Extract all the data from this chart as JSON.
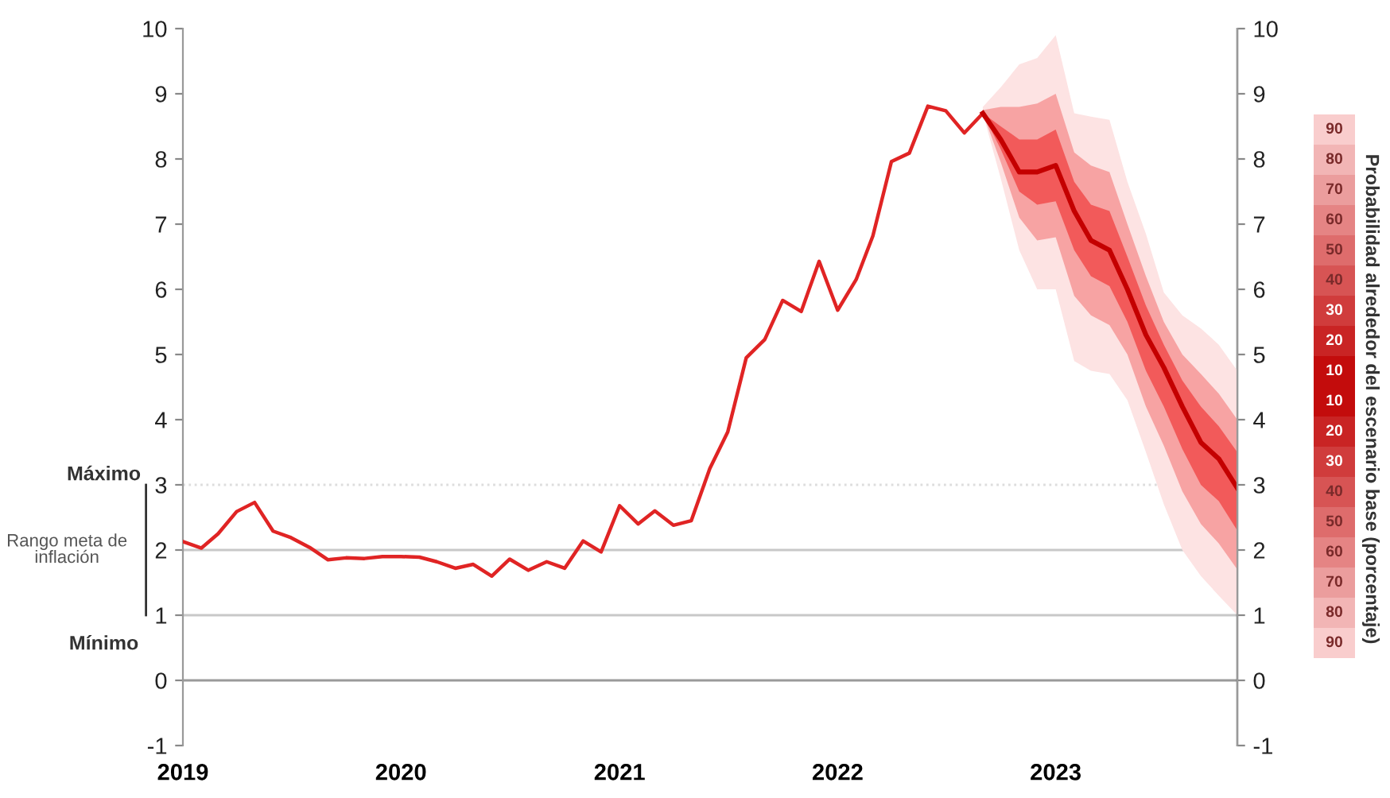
{
  "chart_data": {
    "type": "line",
    "x": [
      "2019-01",
      "2019-02",
      "2019-03",
      "2019-04",
      "2019-05",
      "2019-06",
      "2019-07",
      "2019-08",
      "2019-09",
      "2019-10",
      "2019-11",
      "2019-12",
      "2020-01",
      "2020-02",
      "2020-03",
      "2020-04",
      "2020-05",
      "2020-06",
      "2020-07",
      "2020-08",
      "2020-09",
      "2020-10",
      "2020-11",
      "2020-12",
      "2021-01",
      "2021-02",
      "2021-03",
      "2021-04",
      "2021-05",
      "2021-06",
      "2021-07",
      "2021-08",
      "2021-09",
      "2021-10",
      "2021-11",
      "2021-12",
      "2022-01",
      "2022-02",
      "2022-03",
      "2022-04",
      "2022-05",
      "2022-06",
      "2022-07",
      "2022-08",
      "2022-09"
    ],
    "series": [
      {
        "color": "#e02424",
        "values": [
          2.13,
          2.03,
          2.25,
          2.59,
          2.73,
          2.29,
          2.19,
          2.04,
          1.85,
          1.88,
          1.87,
          1.9,
          1.9,
          1.89,
          1.82,
          1.72,
          1.78,
          1.6,
          1.86,
          1.69,
          1.82,
          1.72,
          2.14,
          1.97,
          2.68,
          2.4,
          2.6,
          2.38,
          2.45,
          3.25,
          3.81,
          4.95,
          5.23,
          5.83,
          5.66,
          6.43,
          5.68,
          6.15,
          6.82,
          7.96,
          8.09,
          8.81,
          8.74,
          8.4,
          8.7
        ]
      },
      {
        "color": "#c40000",
        "x": [
          "2022-09",
          "2022-10",
          "2022-11",
          "2022-12",
          "2023-01",
          "2023-02",
          "2023-03",
          "2023-04",
          "2023-05",
          "2023-06",
          "2023-07",
          "2023-08",
          "2023-09",
          "2023-10",
          "2023-11"
        ],
        "values": [
          8.7,
          8.3,
          7.8,
          7.8,
          7.9,
          7.2,
          6.75,
          6.6,
          6.0,
          5.3,
          4.8,
          4.2,
          3.65,
          3.4,
          2.95
        ],
        "lower": [
          8.7,
          7.7,
          6.6,
          6.0,
          6.0,
          4.9,
          4.75,
          4.7,
          4.3,
          3.5,
          2.7,
          2.0,
          1.6,
          1.3,
          1.0
        ],
        "upper": [
          8.8,
          9.1,
          9.45,
          9.55,
          9.9,
          8.7,
          8.65,
          8.6,
          7.65,
          6.85,
          5.95,
          5.6,
          5.4,
          5.15,
          4.75
        ]
      },
      {
        "color": "#f7a3a3",
        "x": [
          "2022-09",
          "2022-10",
          "2022-11",
          "2022-12",
          "2023-01",
          "2023-02",
          "2023-03",
          "2023-04",
          "2023-05",
          "2023-06",
          "2023-07",
          "2023-08",
          "2023-09",
          "2023-10",
          "2023-11"
        ],
        "values": [
          null,
          null,
          null,
          null,
          null,
          null,
          null,
          null,
          null,
          null,
          null,
          null,
          null,
          null,
          null
        ],
        "lower": [
          8.7,
          7.95,
          7.1,
          6.75,
          6.8,
          5.9,
          5.6,
          5.45,
          5.0,
          4.2,
          3.6,
          2.9,
          2.4,
          2.1,
          1.7
        ],
        "upper": [
          8.75,
          8.8,
          8.8,
          8.85,
          9.0,
          8.1,
          7.9,
          7.8,
          7.0,
          6.2,
          5.5,
          5.0,
          4.7,
          4.4,
          4.0
        ]
      },
      {
        "color": "#f25a5a",
        "x": [
          "2022-09",
          "2022-10",
          "2022-11",
          "2022-12",
          "2023-01",
          "2023-02",
          "2023-03",
          "2023-04",
          "2023-05",
          "2023-06",
          "2023-07",
          "2023-08",
          "2023-09",
          "2023-10",
          "2023-11"
        ],
        "values": [
          null,
          null,
          null,
          null,
          null,
          null,
          null,
          null,
          null,
          null,
          null,
          null,
          null,
          null,
          null
        ],
        "lower": [
          8.7,
          8.15,
          7.5,
          7.3,
          7.35,
          6.6,
          6.2,
          6.05,
          5.5,
          4.75,
          4.2,
          3.55,
          3.0,
          2.75,
          2.3
        ],
        "upper": [
          8.7,
          8.5,
          8.3,
          8.3,
          8.45,
          7.65,
          7.3,
          7.2,
          6.5,
          5.75,
          5.15,
          4.6,
          4.2,
          3.9,
          3.5
        ]
      }
    ],
    "xlim": [
      "2019-01",
      "2023-11"
    ],
    "xticks": [
      {
        "value": "2019-01",
        "label": "2019"
      },
      {
        "value": "2020-01",
        "label": "2020"
      },
      {
        "value": "2021-01",
        "label": "2021"
      },
      {
        "value": "2022-01",
        "label": "2022"
      },
      {
        "value": "2023-01",
        "label": "2023"
      }
    ],
    "ylim": [
      -1,
      10
    ],
    "yticks": [
      -1,
      0,
      1,
      2,
      3,
      4,
      5,
      6,
      7,
      8,
      9,
      10
    ],
    "y2lim": [
      -1,
      10
    ],
    "y2ticks": [
      -1,
      0,
      1,
      2,
      3,
      4,
      5,
      6,
      7,
      8,
      9,
      10
    ],
    "y2label": "Probabilidad alrededor del escenario base (porcentaje)",
    "ref_lines": [
      {
        "axis": "y",
        "value": 3,
        "label": "Máximo",
        "color": "#dddddd",
        "line_style": "dotted"
      },
      {
        "axis": "y",
        "value": 2,
        "label": null,
        "color": "#c8c8c8",
        "line_style": "solid"
      },
      {
        "axis": "y",
        "value": 1,
        "label": "Mínimo",
        "color": "#c8c8c8",
        "line_style": "solid"
      },
      {
        "axis": "y",
        "value": 0,
        "label": null,
        "color": "#9a9a9a",
        "line_style": "solid"
      }
    ],
    "annotations": [
      "Rango meta de inflación",
      "90",
      "80",
      "70",
      "60",
      "50",
      "40",
      "30",
      "20",
      "10",
      "10",
      "20",
      "30",
      "40",
      "50",
      "60",
      "70",
      "80",
      "90"
    ],
    "grid": false,
    "marker": "none",
    "line_style": "solid"
  }
}
